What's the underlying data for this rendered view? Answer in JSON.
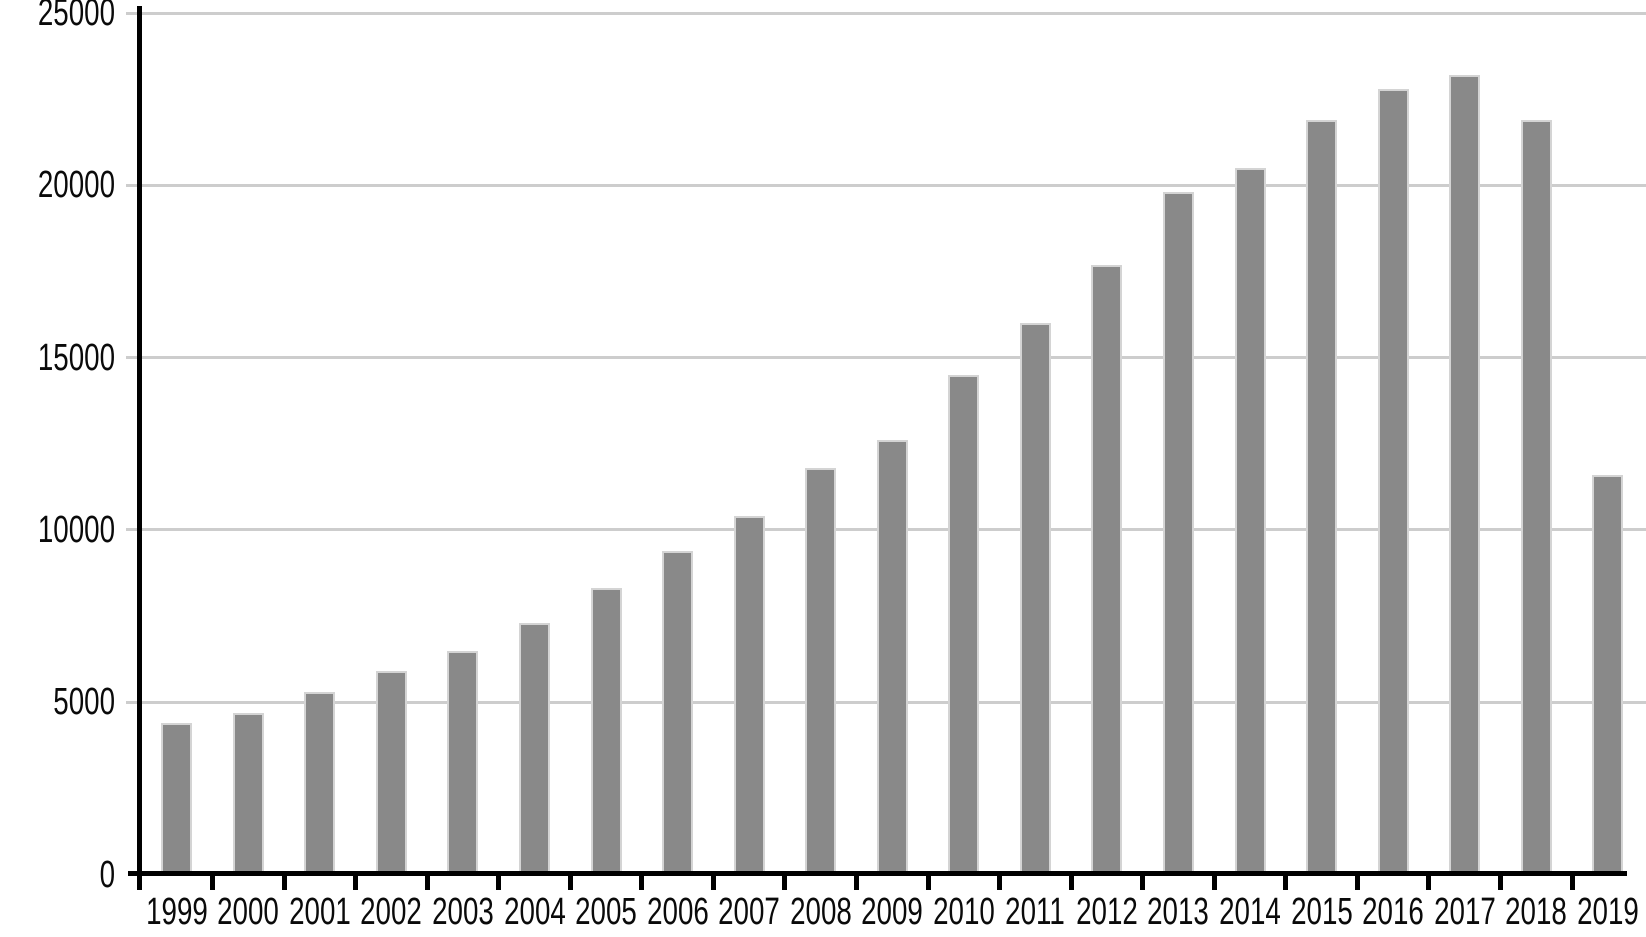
{
  "chart_data": {
    "type": "bar",
    "title": "",
    "xlabel": "",
    "ylabel": "",
    "categories": [
      "1999",
      "2000",
      "2001",
      "2002",
      "2003",
      "2004",
      "2005",
      "2006",
      "2007",
      "2008",
      "2009",
      "2010",
      "2011",
      "2012",
      "2013",
      "2014",
      "2015",
      "2016",
      "2017",
      "2018",
      "2019"
    ],
    "values": [
      4400,
      4700,
      5300,
      5900,
      6500,
      7300,
      8300,
      9400,
      10400,
      11800,
      12600,
      14500,
      16000,
      17700,
      19800,
      20500,
      21900,
      22800,
      23200,
      21900,
      11600
    ],
    "ylim": [
      0,
      25000
    ],
    "y_ticks": [
      0,
      5000,
      10000,
      15000,
      20000,
      25000
    ],
    "y_tick_labels": [
      "0",
      "5000",
      "10000",
      "15000",
      "20000",
      "25000"
    ],
    "grid": "horizontal",
    "legend": "none",
    "colors": {
      "bar_fill": "#898989",
      "bar_border": "#d4d4d4",
      "gridline": "#cdcdcd",
      "axis": "#000000",
      "label": "#0a0a0a",
      "background": "#ffffff"
    }
  }
}
